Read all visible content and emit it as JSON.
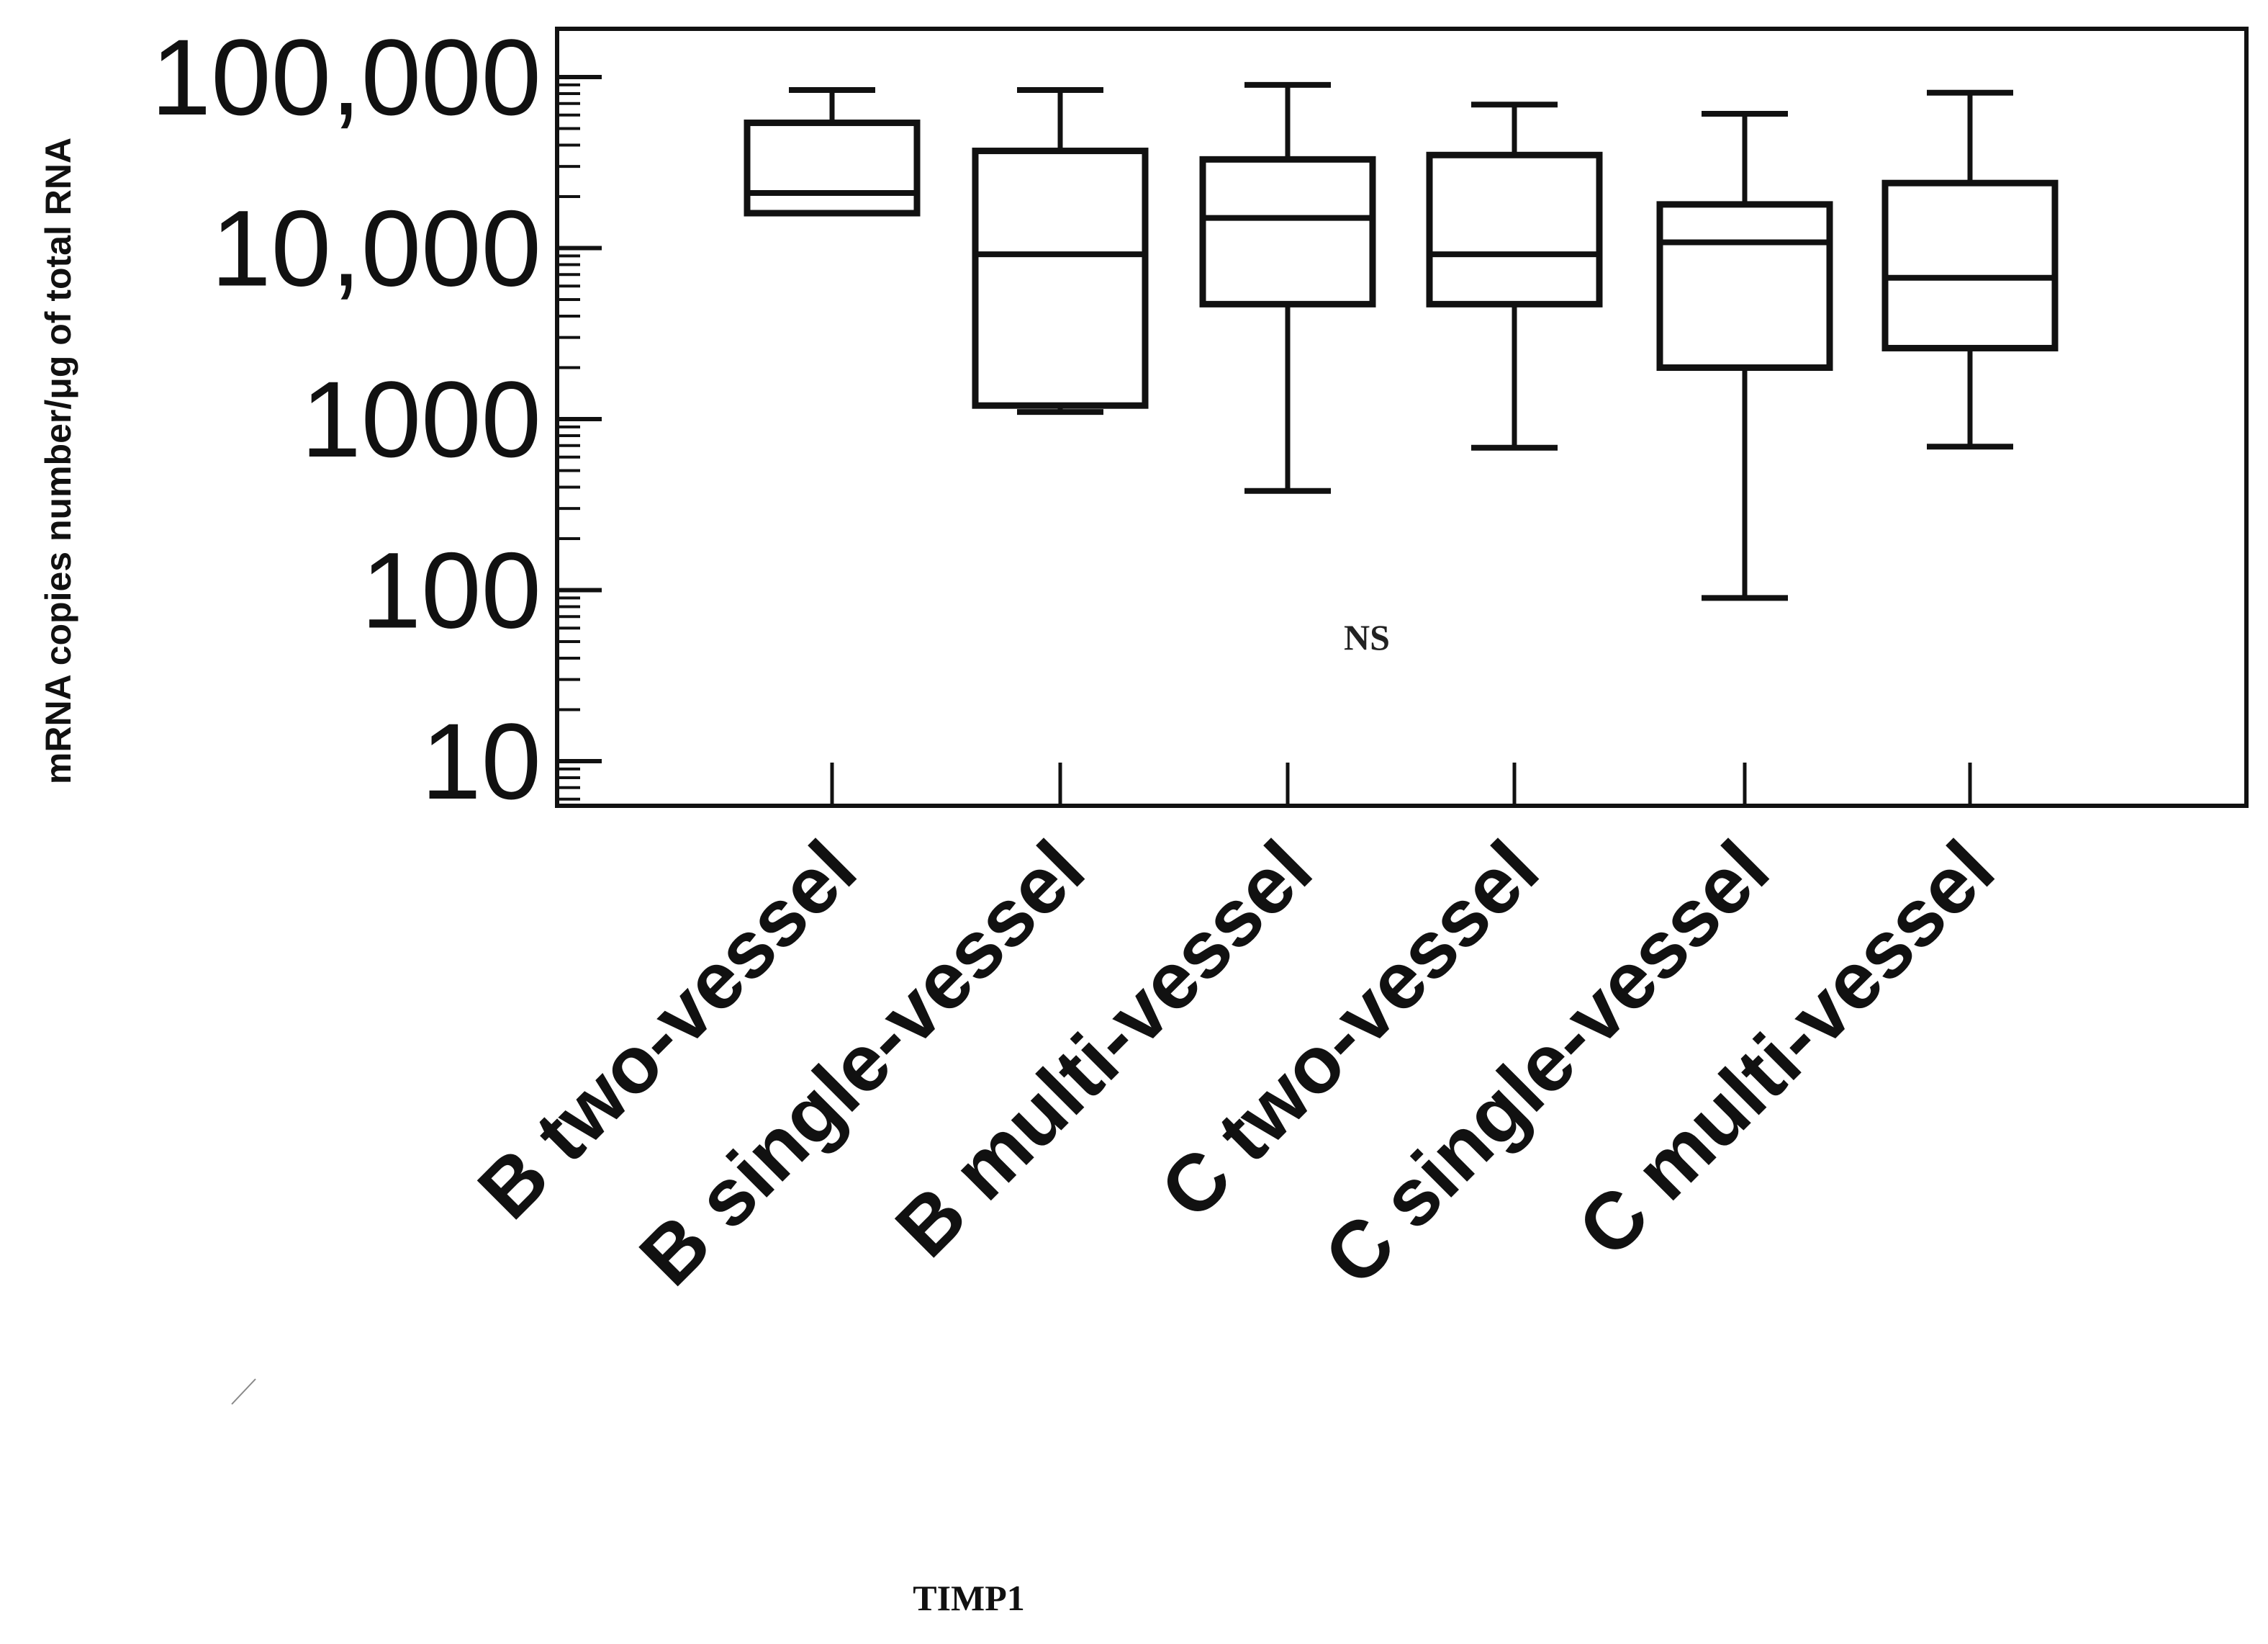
{
  "figure": {
    "gene_label": "TIMP1",
    "annotation": "NS",
    "colors": {
      "ink": "#111111",
      "background": "#ffffff"
    }
  },
  "chart_data": {
    "type": "box",
    "title": "",
    "gene": "TIMP1",
    "xlabel": "",
    "ylabel": "mRNA copies number/μg of total RNA",
    "yscale": "log",
    "ylim": [
      5,
      200000
    ],
    "yticks": [
      10,
      100,
      1000,
      10000,
      100000
    ],
    "ytick_labels": [
      "10",
      "100",
      "1000",
      "10,000",
      "100,000"
    ],
    "grid": false,
    "legend": null,
    "annotations": [
      {
        "text": "NS",
        "position": "center, between B multi-vessel and C two-vessel, near y≈60"
      }
    ],
    "categories": [
      "B two-vessel",
      "B single-vessel",
      "B multi-vessel",
      "C two-vessel",
      "C single-vessel",
      "C multi-vessel"
    ],
    "series": [
      {
        "name": "B two-vessel",
        "whisker_low": 16000,
        "q1": 16000,
        "median": 21000,
        "q3": 54000,
        "whisker_high": 84000
      },
      {
        "name": "B single-vessel",
        "whisker_low": 1100,
        "q1": 1200,
        "median": 9200,
        "q3": 37000,
        "whisker_high": 84000
      },
      {
        "name": "B multi-vessel",
        "whisker_low": 380,
        "q1": 4700,
        "median": 15000,
        "q3": 33000,
        "whisker_high": 90000
      },
      {
        "name": "C two-vessel",
        "whisker_low": 680,
        "q1": 4700,
        "median": 9200,
        "q3": 35000,
        "whisker_high": 69000
      },
      {
        "name": "C single-vessel",
        "whisker_low": 90,
        "q1": 2000,
        "median": 10800,
        "q3": 18000,
        "whisker_high": 61000
      },
      {
        "name": "C multi-vessel",
        "whisker_low": 690,
        "q1": 2600,
        "median": 6700,
        "q3": 24000,
        "whisker_high": 81000
      }
    ]
  }
}
